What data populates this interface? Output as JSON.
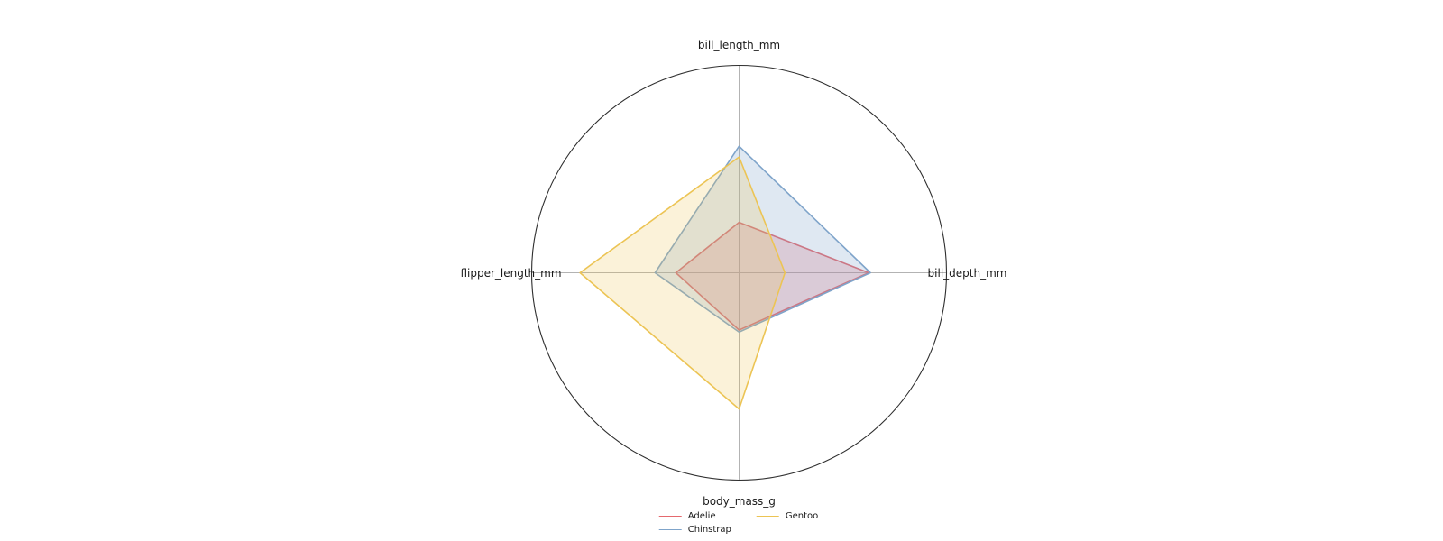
{
  "figure": {
    "background": "#ffffff",
    "outline_color": "#2e2e2e",
    "grid_color": "#b3b3b3",
    "text_color": "#1a1a1a"
  },
  "chart_data": {
    "type": "radar",
    "axes": [
      "bill_length_mm",
      "bill_depth_mm",
      "body_mass_g",
      "flipper_length_mm"
    ],
    "axes_positions_deg": [
      -90,
      0,
      90,
      180
    ],
    "r_range": [
      0,
      1
    ],
    "radial_ticks_visible": false,
    "grid": "axis-cross-only",
    "outer_boundary": "circle",
    "series": [
      {
        "name": "Adelie",
        "color": "#e5696e",
        "fill_opacity": 0.25,
        "values": [
          0.243,
          0.625,
          0.276,
          0.305
        ]
      },
      {
        "name": "Chinstrap",
        "color": "#7fa4ca",
        "fill_opacity": 0.25,
        "values": [
          0.61,
          0.633,
          0.286,
          0.405
        ]
      },
      {
        "name": "Gentoo",
        "color": "#ecc454",
        "fill_opacity": 0.22,
        "values": [
          0.558,
          0.221,
          0.657,
          0.767
        ]
      }
    ],
    "legend": {
      "position": "bottom-center",
      "columns": 2,
      "fill_order": "column-major",
      "entries": [
        "Adelie",
        "Chinstrap",
        "Gentoo"
      ]
    }
  }
}
